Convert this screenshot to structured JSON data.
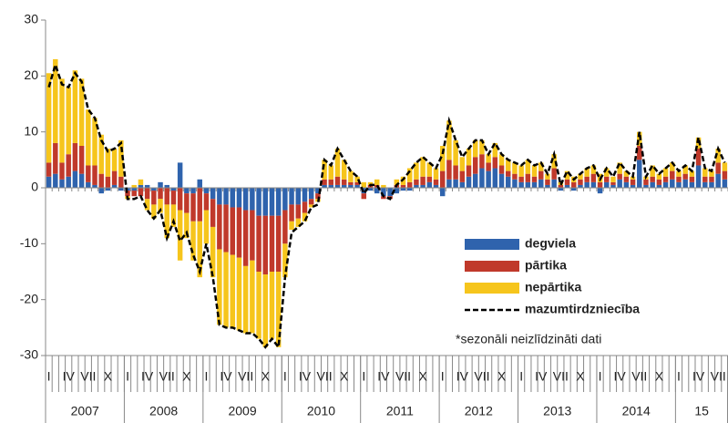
{
  "chart_data": {
    "type": "bar",
    "stacked": true,
    "categories": [
      "I",
      null,
      null,
      "IV",
      null,
      null,
      "VII",
      null,
      null,
      "X",
      null,
      null,
      "I",
      null,
      null,
      "IV",
      null,
      null,
      "VII",
      null,
      null,
      "X",
      null,
      null,
      "I",
      null,
      null,
      "IV",
      null,
      null,
      "VII",
      null,
      null,
      "X",
      null,
      null,
      "I",
      null,
      null,
      "IV",
      null,
      null,
      "VII",
      null,
      null,
      "X",
      null,
      null,
      "I",
      null,
      null,
      "IV",
      null,
      null,
      "VII",
      null,
      null,
      "X",
      null,
      null,
      "I",
      null,
      null,
      "IV",
      null,
      null,
      "VII",
      null,
      null,
      "X",
      null,
      null,
      "I",
      null,
      null,
      "IV",
      null,
      null,
      "VII",
      null,
      null,
      "X",
      null,
      null,
      "I",
      null,
      null,
      "IV",
      null,
      null,
      "VII",
      null,
      null,
      "X",
      null,
      null,
      "I",
      null,
      null,
      "IV",
      null,
      null,
      "VII",
      null
    ],
    "years": [
      "2007",
      "2008",
      "2009",
      "2010",
      "2011",
      "2012",
      "2013",
      "2014",
      "15"
    ],
    "series": [
      {
        "name": "degviela",
        "kind": "bar",
        "color": "#2f63ad",
        "values": [
          2,
          2.5,
          1.5,
          2,
          3,
          2.5,
          1,
          0.5,
          -1,
          -0.5,
          0.5,
          -0.5,
          -0.5,
          -0.5,
          0.5,
          0.5,
          -0.5,
          1,
          0.5,
          -0.5,
          4.5,
          -1,
          -1,
          1.5,
          -1,
          -2,
          -3,
          -3,
          -3.5,
          -3.5,
          -4,
          -4,
          -5,
          -5,
          -5,
          -5,
          -4,
          -3,
          -3,
          -2.5,
          -2,
          -1,
          0.5,
          0.5,
          0.5,
          0.5,
          0.5,
          0.5,
          -1,
          -0.5,
          -1,
          -1.5,
          -1.5,
          -1,
          -0.5,
          -0.5,
          0.5,
          0.5,
          1,
          0.5,
          -1.5,
          1.5,
          1.5,
          1,
          2,
          2.5,
          3.5,
          3,
          3.5,
          2.5,
          2,
          1.5,
          1,
          1,
          1,
          1.5,
          0.5,
          1.5,
          -0.5,
          0.5,
          -0.5,
          0.5,
          1,
          1,
          -1,
          1,
          0.5,
          1.5,
          1,
          0.5,
          5,
          0.5,
          1,
          0.5,
          1,
          1.5,
          1,
          1.5,
          1,
          4,
          1,
          1,
          2.5,
          1.5
        ]
      },
      {
        "name": "pārtika",
        "kind": "bar",
        "color": "#c0392b",
        "values": [
          2.5,
          5.5,
          3,
          4,
          5,
          5,
          3,
          3.5,
          2.5,
          2,
          2.5,
          2,
          -1,
          -1,
          -1.5,
          -2,
          -2.5,
          -2,
          -3,
          -2.5,
          -4,
          -3.5,
          -5,
          -6,
          -3,
          -5,
          -8,
          -8.5,
          -8.5,
          -9,
          -10,
          -9,
          -10,
          -10.5,
          -10,
          -10,
          -6,
          -3,
          -2.5,
          -2,
          -1,
          -1,
          1,
          1,
          1.5,
          1,
          0.5,
          0.5,
          -1,
          0.5,
          0.5,
          -0.5,
          -0.5,
          0.5,
          0.5,
          1,
          1,
          1.5,
          1,
          1,
          3,
          3.5,
          2.5,
          2,
          2,
          3,
          2.5,
          1.5,
          2,
          1.5,
          1,
          1,
          1,
          1.5,
          1,
          1.5,
          1,
          2,
          0.5,
          1,
          1,
          1,
          1,
          1.5,
          1,
          1,
          0.5,
          1,
          1,
          1,
          2.5,
          1,
          1,
          1,
          1,
          1.5,
          1,
          1,
          1,
          3,
          1,
          1,
          2,
          1.5
        ]
      },
      {
        "name": "nepārtika",
        "kind": "bar",
        "color": "#f6c51c",
        "values": [
          16,
          15,
          15,
          12,
          13,
          12,
          10,
          8.5,
          7,
          5,
          4,
          6.5,
          -0.5,
          0.5,
          1,
          -2,
          -2.5,
          -2.5,
          -6,
          -4,
          -9,
          -4.5,
          -7,
          -10,
          -6,
          -9,
          -13.5,
          -13.5,
          -13,
          -13,
          -12,
          -13,
          -12,
          -13,
          -12,
          -13.5,
          -6,
          -1.5,
          -1.5,
          -1.5,
          -0.5,
          -0.5,
          3.5,
          2.5,
          5,
          3.5,
          2,
          1,
          1,
          0.5,
          1,
          0.5,
          0,
          1,
          1.5,
          2.5,
          3,
          3.5,
          2.5,
          2,
          4.5,
          7,
          4.5,
          2.5,
          3,
          3,
          2.5,
          1.5,
          2.5,
          2,
          2,
          2,
          2,
          2.5,
          2,
          1.5,
          1,
          2.5,
          0.5,
          1.5,
          1,
          1,
          1.5,
          1.5,
          1.5,
          1.5,
          1,
          2,
          1,
          0.5,
          2.5,
          0.5,
          2,
          1,
          1.5,
          1.5,
          1,
          1.5,
          1,
          2,
          1.5,
          1,
          2.5,
          1.5
        ]
      },
      {
        "name": "mazumtirdzniecība",
        "kind": "line",
        "color": "#000000",
        "dashed": true,
        "values": [
          18,
          22,
          18.5,
          18,
          20.5,
          19,
          14,
          12.5,
          8.5,
          6.5,
          7,
          8,
          -2,
          -2,
          -1.5,
          -4,
          -5.5,
          -4,
          -9,
          -6,
          -9.5,
          -8,
          -12,
          -15,
          -10,
          -16,
          -24.5,
          -25,
          -25,
          -25.5,
          -26,
          -26,
          -27,
          -28.5,
          -27,
          -28.5,
          -16,
          -8,
          -7,
          -6,
          -3.5,
          -3,
          5,
          4,
          7,
          5,
          3,
          2,
          -1,
          0.5,
          0.5,
          -1.5,
          -2,
          0.5,
          1.5,
          3,
          4.5,
          5.5,
          4.5,
          3.5,
          6,
          12,
          8.5,
          5.5,
          7,
          8.5,
          8.5,
          6,
          8,
          6,
          5,
          4.5,
          4,
          5,
          4,
          4.5,
          2.5,
          6,
          0.5,
          3,
          1.5,
          2.5,
          3.5,
          4,
          1.5,
          3.5,
          2,
          4.5,
          3,
          2,
          10,
          2,
          4,
          2.5,
          3.5,
          4.5,
          3,
          4,
          3,
          9,
          3.5,
          3,
          7,
          4.5
        ]
      }
    ],
    "ylim": [
      -30,
      30
    ],
    "yticks": [
      -30,
      -20,
      -10,
      0,
      10,
      20,
      30
    ],
    "grid": false,
    "legend": "right",
    "annotation": "*sezonāli neizlīdzināti dati"
  }
}
